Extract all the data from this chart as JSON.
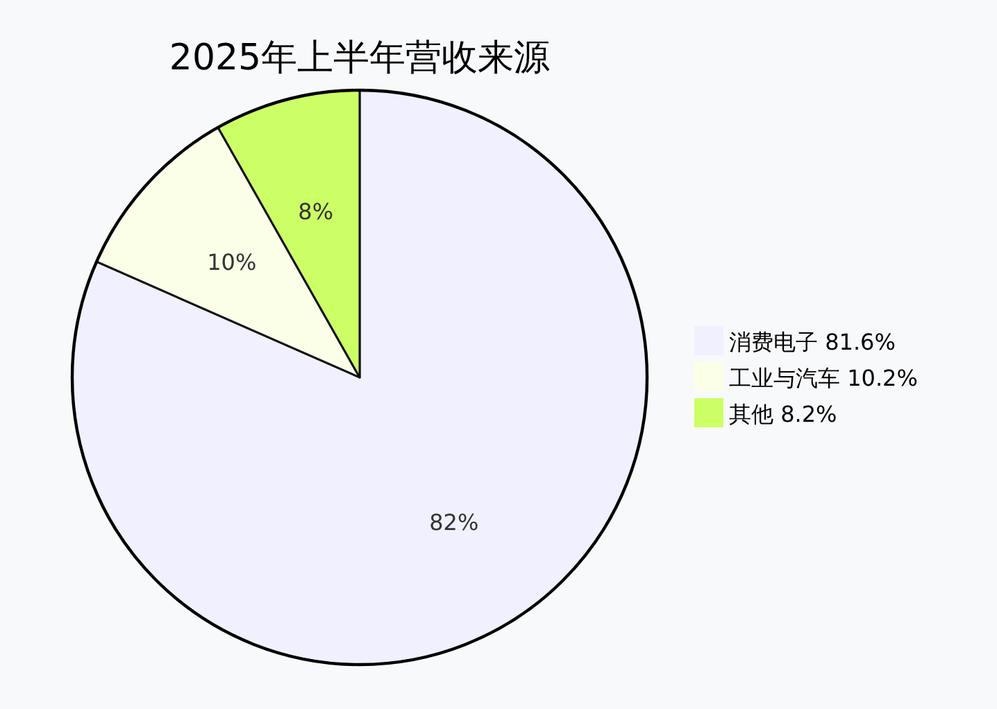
{
  "chart_data": {
    "type": "pie",
    "title": "2025年上半年营收来源",
    "categories": [
      "消费电子 81.6%",
      "工业与汽车 10.2%",
      "其他 8.2%"
    ],
    "values": [
      81.6,
      10.2,
      8.2
    ],
    "colors": [
      "#f0f0ff",
      "#fcffe8",
      "#ccff66"
    ],
    "value_labels": [
      "82%",
      "10%",
      "8%"
    ],
    "legend": "right"
  }
}
